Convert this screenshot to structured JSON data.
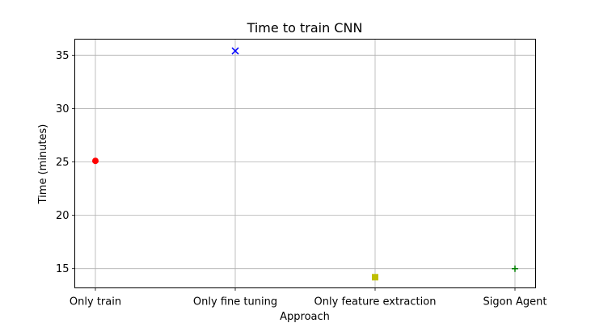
{
  "chart_data": {
    "type": "scatter",
    "title": "Time to train CNN",
    "xlabel": "Approach",
    "ylabel": "Time (minutes)",
    "categories": [
      "Only train",
      "Only fine tuning",
      "Only feature extraction",
      "Sigon Agent"
    ],
    "ylim": [
      13.2,
      36.5
    ],
    "yticks": [
      15,
      20,
      25,
      30,
      35
    ],
    "grid": true,
    "points": [
      {
        "category": "Only train",
        "value": 25.1,
        "marker": "circle",
        "color": "#ff0000"
      },
      {
        "category": "Only fine tuning",
        "value": 35.4,
        "marker": "x",
        "color": "#0000ff"
      },
      {
        "category": "Only feature extraction",
        "value": 14.2,
        "marker": "square",
        "color": "#bfbf00"
      },
      {
        "category": "Sigon Agent",
        "value": 15.0,
        "marker": "plus",
        "color": "#008000"
      }
    ]
  }
}
